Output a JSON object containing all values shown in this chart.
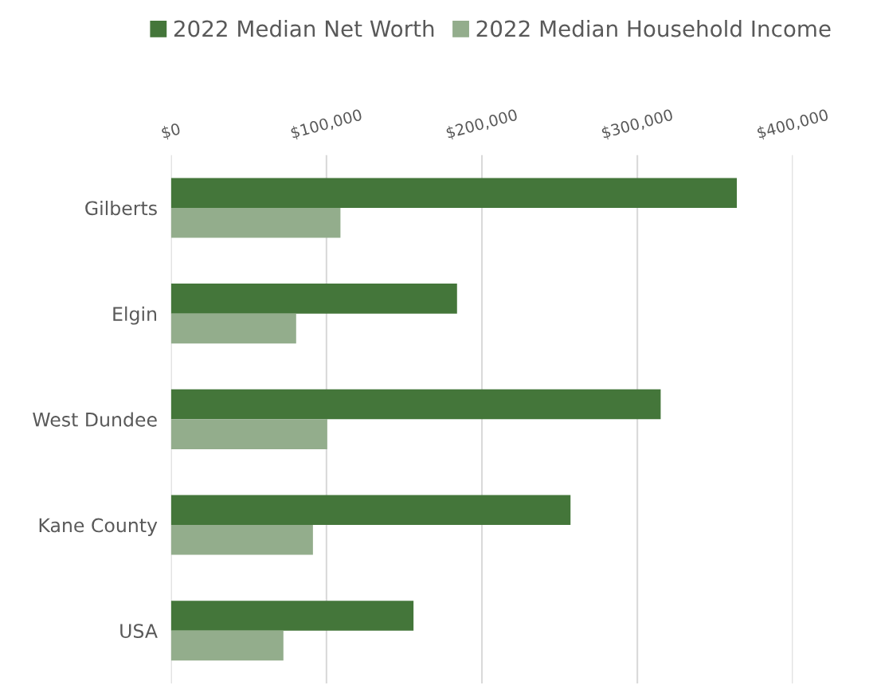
{
  "chart_data": {
    "type": "bar",
    "orientation": "horizontal",
    "categories": [
      "Gilberts",
      "Elgin",
      "West Dundee",
      "Kane County",
      "USA"
    ],
    "series": [
      {
        "name": "2022 Median Net Worth",
        "color": "#44763a",
        "values": [
          364000,
          184000,
          315000,
          257000,
          156000
        ]
      },
      {
        "name": "2022 Median Household Income",
        "color": "#93ad8c",
        "values": [
          109000,
          80500,
          100500,
          91300,
          72300
        ]
      }
    ],
    "xlim": [
      0,
      400000
    ],
    "xticks": [
      {
        "value": 0,
        "label": "$0"
      },
      {
        "value": 100000,
        "label": "$100,000"
      },
      {
        "value": 200000,
        "label": "$200,000"
      },
      {
        "value": 300000,
        "label": "$300,000"
      },
      {
        "value": 400000,
        "label": "$400,000"
      }
    ],
    "grid": "x",
    "legend": "top"
  }
}
